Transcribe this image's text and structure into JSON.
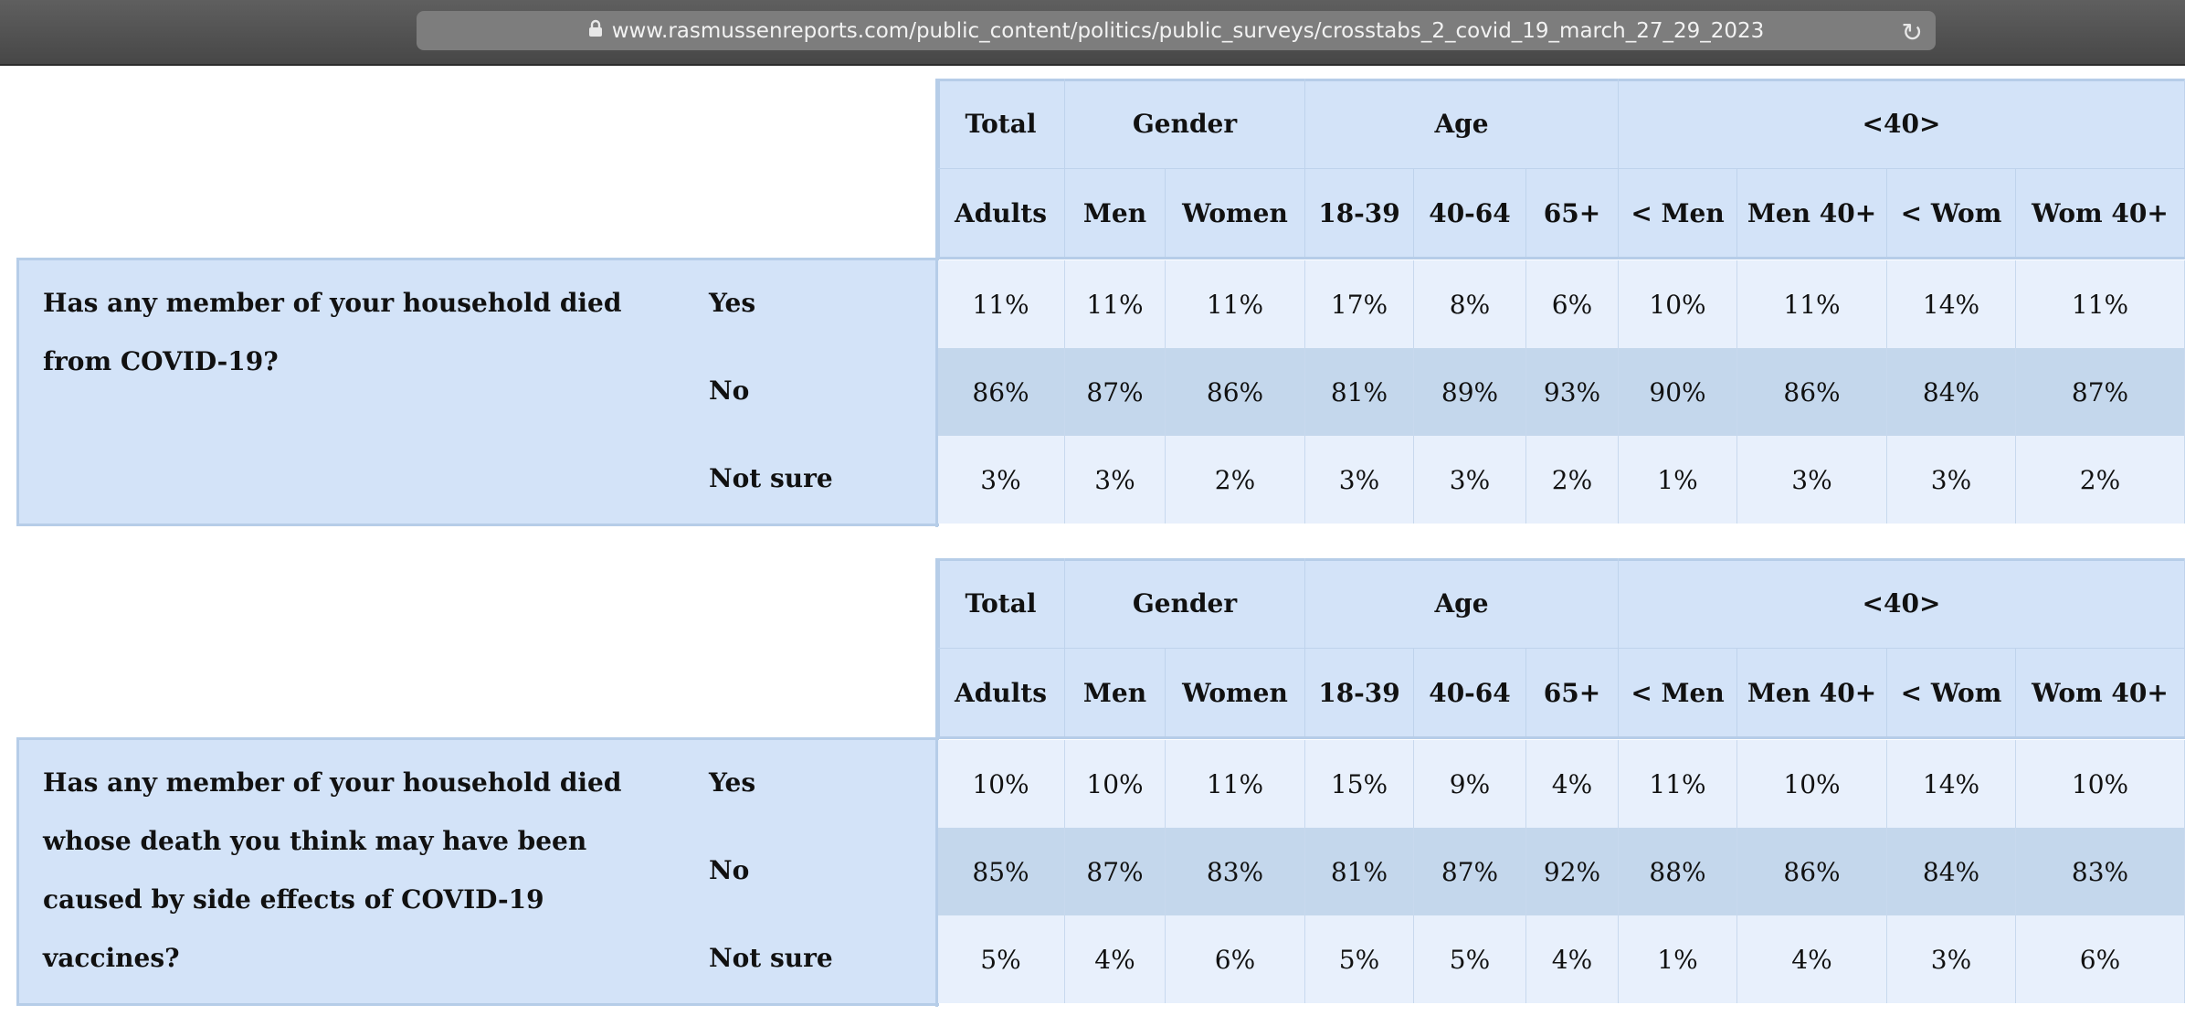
{
  "browser": {
    "url": "www.rasmussenreports.com/public_content/politics/public_surveys/crosstabs_2_covid_19_march_27_29_2023"
  },
  "group_headers": [
    "Total",
    "Gender",
    "Age",
    "<40>"
  ],
  "columns": [
    "Adults",
    "Men",
    "Women",
    "18-39",
    "40-64",
    "65+",
    "< Men",
    "Men 40+",
    "< Wom",
    "Wom 40+"
  ],
  "questions": [
    {
      "text": "Has any member of your household died from COVID-19?",
      "rows": [
        {
          "answer": "Yes",
          "values": [
            "11%",
            "11%",
            "11%",
            "17%",
            "8%",
            "6%",
            "10%",
            "11%",
            "14%",
            "11%"
          ]
        },
        {
          "answer": "No",
          "values": [
            "86%",
            "87%",
            "86%",
            "81%",
            "89%",
            "93%",
            "90%",
            "86%",
            "84%",
            "87%"
          ]
        },
        {
          "answer": "Not sure",
          "values": [
            "3%",
            "3%",
            "2%",
            "3%",
            "3%",
            "2%",
            "1%",
            "3%",
            "3%",
            "2%"
          ]
        }
      ]
    },
    {
      "text": "Has any member of your household died whose death you think may have been caused by side effects of COVID-19 vaccines?",
      "rows": [
        {
          "answer": "Yes",
          "values": [
            "10%",
            "10%",
            "11%",
            "15%",
            "9%",
            "4%",
            "11%",
            "10%",
            "14%",
            "10%"
          ]
        },
        {
          "answer": "No",
          "values": [
            "85%",
            "87%",
            "83%",
            "81%",
            "87%",
            "92%",
            "88%",
            "86%",
            "84%",
            "83%"
          ]
        },
        {
          "answer": "Not sure",
          "values": [
            "5%",
            "4%",
            "6%",
            "5%",
            "5%",
            "4%",
            "1%",
            "4%",
            "3%",
            "6%"
          ]
        }
      ]
    }
  ],
  "colors": {
    "header_bg": "#d3e3f8",
    "row_light": "#e8f0fc",
    "row_dark": "#c4d7ec",
    "border": "#b6cde8"
  }
}
